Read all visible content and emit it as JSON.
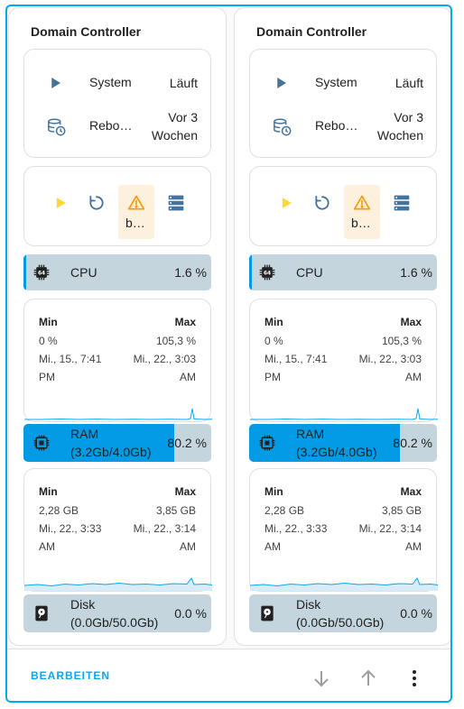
{
  "cards": [
    {
      "title": "Domain Controller",
      "entities": [
        {
          "icon": "play-icon",
          "name": "System",
          "state_line1": "Läuft",
          "state_line2": ""
        },
        {
          "icon": "database-clock-icon",
          "name": "Rebo…",
          "state_line1": "Vor 3",
          "state_line2": "Wochen"
        }
      ],
      "buttons": [
        {
          "icon": "play-icon",
          "label": ""
        },
        {
          "icon": "restart-icon",
          "label": ""
        },
        {
          "icon": "warning-icon",
          "label": "b…"
        },
        {
          "icon": "server-icon",
          "label": ""
        }
      ],
      "cpu": {
        "label": "CPU",
        "value": "1.6 %",
        "fill": 0.016
      },
      "cpu_graph": {
        "min_label": "Min",
        "max_label": "Max",
        "min_value": "0 %",
        "max_value": "105,3 %",
        "min_time_1": "Mi., 15., 7:41",
        "min_time_2": "PM",
        "max_time_1": "Mi., 22., 3:03",
        "max_time_2": "AM"
      },
      "ram": {
        "label_1": "RAM",
        "label_2": "(3.2Gb/4.0Gb)",
        "value": "80.2 %",
        "fill": 0.802
      },
      "ram_graph": {
        "min_label": "Min",
        "max_label": "Max",
        "min_value": "2,28 GB",
        "max_value": "3,85 GB",
        "min_time_1": "Mi., 22., 3:33",
        "min_time_2": "AM",
        "max_time_1": "Mi., 22., 3:14",
        "max_time_2": "AM"
      },
      "disk": {
        "label_1": "Disk",
        "label_2": "(0.0Gb/50.0Gb)",
        "value": "0.0 %",
        "fill": 0.0
      }
    },
    {
      "title": "Domain Controller",
      "entities": [
        {
          "icon": "play-icon",
          "name": "System",
          "state_line1": "Läuft",
          "state_line2": ""
        },
        {
          "icon": "database-clock-icon",
          "name": "Rebo…",
          "state_line1": "Vor 3",
          "state_line2": "Wochen"
        }
      ],
      "buttons": [
        {
          "icon": "play-icon",
          "label": ""
        },
        {
          "icon": "restart-icon",
          "label": ""
        },
        {
          "icon": "warning-icon",
          "label": "b…"
        },
        {
          "icon": "server-icon",
          "label": ""
        }
      ],
      "cpu": {
        "label": "CPU",
        "value": "1.6 %",
        "fill": 0.016
      },
      "cpu_graph": {
        "min_label": "Min",
        "max_label": "Max",
        "min_value": "0 %",
        "max_value": "105,3 %",
        "min_time_1": "Mi., 15., 7:41",
        "min_time_2": "PM",
        "max_time_1": "Mi., 22., 3:03",
        "max_time_2": "AM"
      },
      "ram": {
        "label_1": "RAM",
        "label_2": "(3.2Gb/4.0Gb)",
        "value": "80.2 %",
        "fill": 0.802
      },
      "ram_graph": {
        "min_label": "Min",
        "max_label": "Max",
        "min_value": "2,28 GB",
        "max_value": "3,85 GB",
        "min_time_1": "Mi., 22., 3:33",
        "min_time_2": "AM",
        "max_time_1": "Mi., 22., 3:14",
        "max_time_2": "AM"
      },
      "disk": {
        "label_1": "Disk",
        "label_2": "(0.0Gb/50.0Gb)",
        "value": "0.0 %",
        "fill": 0.0
      }
    }
  ],
  "footer": {
    "edit_label": "BEARBEITEN",
    "icons": [
      "arrow-down-icon",
      "arrow-up-icon",
      "more-vertical-icon"
    ]
  },
  "colors": {
    "accent": "#03a9f4",
    "bar_fill": "#039be5",
    "bar_bg": "#c5d5dd",
    "icon_blue": "#44739e",
    "play_yellow": "#fdd835",
    "warning_orange": "#ff9800"
  }
}
